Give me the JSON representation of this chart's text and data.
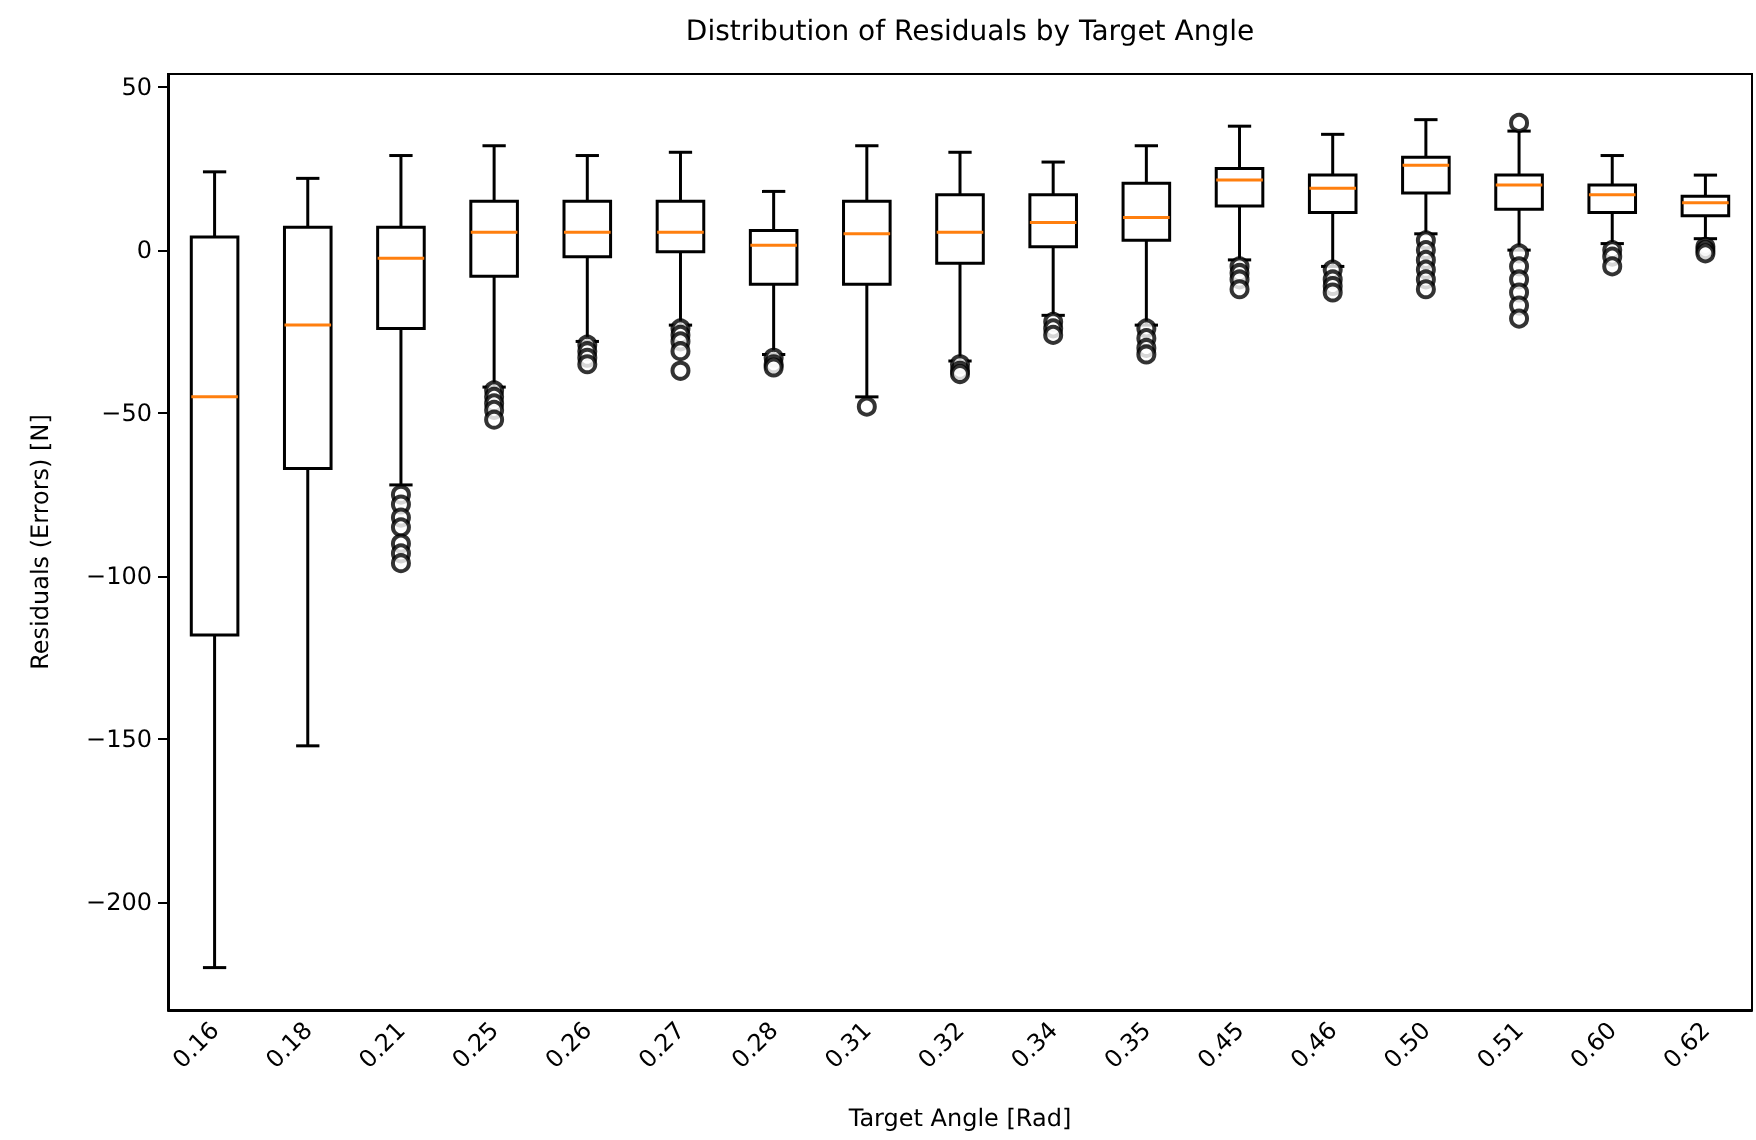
{
  "chart_data": {
    "type": "box",
    "title": "Distribution of Residuals by Target Angle",
    "xlabel": "Target Angle [Rad]",
    "ylabel": "Residuals (Errors) [N]",
    "categories": [
      "0.16",
      "0.18",
      "0.21",
      "0.25",
      "0.26",
      "0.27",
      "0.28",
      "0.31",
      "0.32",
      "0.34",
      "0.35",
      "0.45",
      "0.46",
      "0.50",
      "0.51",
      "0.60",
      "0.62"
    ],
    "boxes": [
      {
        "low": -220,
        "q1": -118,
        "median": -45,
        "q3": 4,
        "high": 24
      },
      {
        "low": -152,
        "q1": -67,
        "median": -23,
        "q3": 7,
        "high": 22
      },
      {
        "low": -72,
        "q1": -24,
        "median": -2.5,
        "q3": 7,
        "high": 29,
        "outliers": [
          -75,
          -78,
          -82,
          -85,
          -90,
          -93,
          -96
        ]
      },
      {
        "low": -42,
        "q1": -8,
        "median": 5.5,
        "q3": 15,
        "high": 32,
        "outliers": [
          -43,
          -45,
          -47,
          -49,
          -52
        ]
      },
      {
        "low": -28,
        "q1": -2,
        "median": 5.5,
        "q3": 15,
        "high": 29,
        "outliers": [
          -29,
          -31,
          -33,
          -35
        ]
      },
      {
        "low": -23,
        "q1": -0.5,
        "median": 5.5,
        "q3": 15,
        "high": 30,
        "outliers": [
          -24,
          -26,
          -28,
          -31,
          -37
        ]
      },
      {
        "low": -32,
        "q1": -10.5,
        "median": 1.5,
        "q3": 6,
        "high": 18,
        "outliers": [
          -33,
          -35,
          -36
        ]
      },
      {
        "low": -45,
        "q1": -10.5,
        "median": 5,
        "q3": 15,
        "high": 32,
        "outliers": [
          -48
        ]
      },
      {
        "low": -34,
        "q1": -4,
        "median": 5.5,
        "q3": 17,
        "high": 30,
        "outliers": [
          -35,
          -37,
          -38
        ]
      },
      {
        "low": -20,
        "q1": 1,
        "median": 8.5,
        "q3": 17,
        "high": 27,
        "outliers": [
          -22,
          -24,
          -26
        ]
      },
      {
        "low": -23,
        "q1": 3,
        "median": 10,
        "q3": 20.5,
        "high": 32,
        "outliers": [
          -24,
          -27,
          -30,
          -32
        ]
      },
      {
        "low": -3,
        "q1": 13.5,
        "median": 21.5,
        "q3": 25,
        "high": 38,
        "outliers": [
          -5,
          -7,
          -9,
          -12
        ]
      },
      {
        "low": -5,
        "q1": 11.5,
        "median": 19,
        "q3": 23,
        "high": 35.5,
        "outliers": [
          -6,
          -9,
          -11,
          -13
        ]
      },
      {
        "low": 5,
        "q1": 17.5,
        "median": 26,
        "q3": 28.5,
        "high": 40,
        "outliers": [
          3,
          0,
          -3,
          -6,
          -9,
          -12
        ]
      },
      {
        "low": 0,
        "q1": 12.5,
        "median": 20,
        "q3": 23,
        "high": 36.5,
        "outliers": [
          39,
          -1,
          -5,
          -9,
          -13,
          -17,
          -21
        ]
      },
      {
        "low": 2,
        "q1": 11.5,
        "median": 17,
        "q3": 20,
        "high": 29,
        "outliers": [
          0,
          -2,
          -5
        ]
      },
      {
        "low": 3.5,
        "q1": 10.5,
        "median": 14.5,
        "q3": 16.5,
        "high": 23,
        "outliers": [
          1,
          0,
          -1
        ]
      }
    ],
    "color": "#000000",
    "ylim": [
      -233,
      54
    ],
    "yticks": [
      {
        "value": -200,
        "label": "−200"
      },
      {
        "value": -150,
        "label": "−150"
      },
      {
        "value": -100,
        "label": "−100"
      },
      {
        "value": -50,
        "label": "−50"
      },
      0,
      50
    ],
    "marker": "circle"
  }
}
